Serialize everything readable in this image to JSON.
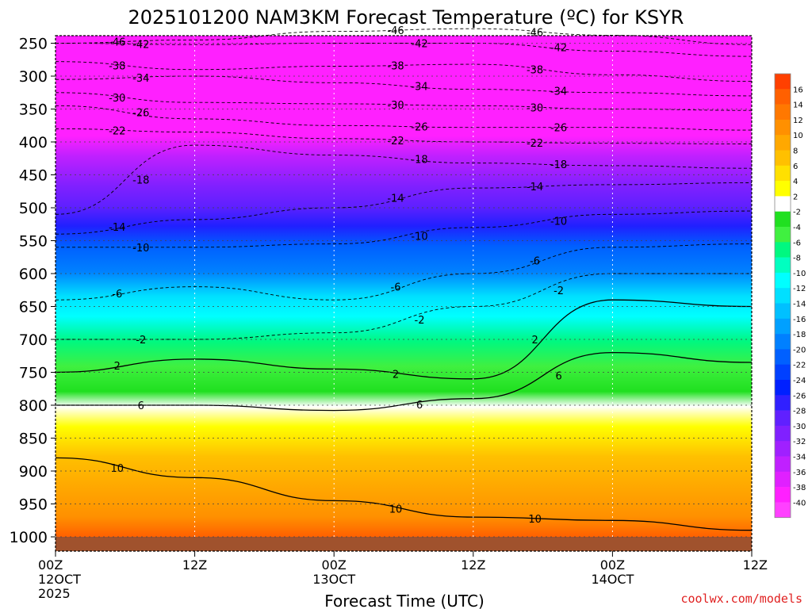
{
  "title": "2025101200 NAM3KM Forecast Temperature (ºC) for KSYR",
  "xlabel": "Forecast Time (UTC)",
  "watermark": "coolwx.com/models",
  "chart_data": {
    "type": "heatmap",
    "title": "2025101200 NAM3KM Forecast Temperature (ºC) for KSYR",
    "xlabel": "Forecast Time (UTC)",
    "ylabel": "",
    "xlim": [
      0,
      60
    ],
    "ylim": [
      1000,
      200
    ],
    "x_ticks": [
      {
        "hour": 0,
        "lines": [
          "00Z",
          "12OCT",
          "2025"
        ]
      },
      {
        "hour": 12,
        "lines": [
          "12Z"
        ]
      },
      {
        "hour": 24,
        "lines": [
          "00Z",
          "13OCT"
        ]
      },
      {
        "hour": 36,
        "lines": [
          "12Z"
        ]
      },
      {
        "hour": 48,
        "lines": [
          "00Z",
          "14OCT"
        ]
      },
      {
        "hour": 60,
        "lines": [
          "12Z"
        ]
      }
    ],
    "y_ticks": [
      250,
      300,
      350,
      400,
      450,
      500,
      550,
      600,
      650,
      700,
      750,
      800,
      850,
      900,
      950,
      1000
    ],
    "colorbar_labels": [
      "16",
      "14",
      "12",
      "10",
      "8",
      "6",
      "4",
      "2",
      "-2",
      "-4",
      "-6",
      "-8",
      "-10",
      "-12",
      "-14",
      "-16",
      "-18",
      "-20",
      "-22",
      "-24",
      "-26",
      "-28",
      "-30",
      "-32",
      "-34",
      "-36",
      "-38",
      "-40"
    ],
    "colorbar_colors": [
      "#ff4000",
      "#ff6000",
      "#ff7800",
      "#ff9000",
      "#ffa800",
      "#ffc000",
      "#ffe000",
      "#ffff00",
      "#ffffff",
      "#20e020",
      "#40f040",
      "#00f880",
      "#00ffc0",
      "#00ffff",
      "#00e0ff",
      "#00c0ff",
      "#00a0ff",
      "#0080ff",
      "#0060ff",
      "#0040ff",
      "#0020ff",
      "#3020ff",
      "#6020ff",
      "#8020ff",
      "#a020ff",
      "#c020ff",
      "#e020ff",
      "#ff20ff",
      "#ff40ff"
    ],
    "series": [
      {
        "name": "-46",
        "values": [
          [
            0,
            250
          ],
          [
            12,
            245
          ],
          [
            24,
            232
          ],
          [
            36,
            228
          ],
          [
            48,
            238
          ],
          [
            60,
            252
          ]
        ]
      },
      {
        "name": "-42",
        "values": [
          [
            0,
            250
          ],
          [
            12,
            252
          ],
          [
            24,
            250
          ],
          [
            36,
            250
          ],
          [
            48,
            262
          ],
          [
            60,
            270
          ]
        ]
      },
      {
        "name": "-38",
        "values": [
          [
            0,
            278
          ],
          [
            12,
            290
          ],
          [
            24,
            285
          ],
          [
            36,
            282
          ],
          [
            48,
            298
          ],
          [
            60,
            308
          ]
        ]
      },
      {
        "name": "-34",
        "values": [
          [
            0,
            305
          ],
          [
            12,
            300
          ],
          [
            24,
            310
          ],
          [
            36,
            320
          ],
          [
            48,
            325
          ],
          [
            60,
            330
          ]
        ]
      },
      {
        "name": "-30",
        "values": [
          [
            0,
            325
          ],
          [
            12,
            340
          ],
          [
            24,
            342
          ],
          [
            36,
            345
          ],
          [
            48,
            350
          ],
          [
            60,
            352
          ]
        ]
      },
      {
        "name": "-26",
        "values": [
          [
            0,
            345
          ],
          [
            12,
            365
          ],
          [
            24,
            375
          ],
          [
            36,
            378
          ],
          [
            48,
            378
          ],
          [
            60,
            382
          ]
        ]
      },
      {
        "name": "-22",
        "values": [
          [
            0,
            380
          ],
          [
            12,
            385
          ],
          [
            24,
            395
          ],
          [
            36,
            400
          ],
          [
            48,
            402
          ],
          [
            60,
            403
          ]
        ]
      },
      {
        "name": "-18",
        "values": [
          [
            0,
            510
          ],
          [
            12,
            405
          ],
          [
            24,
            420
          ],
          [
            36,
            432
          ],
          [
            48,
            436
          ],
          [
            60,
            440
          ]
        ]
      },
      {
        "name": "-14",
        "values": [
          [
            0,
            540
          ],
          [
            12,
            518
          ],
          [
            24,
            500
          ],
          [
            36,
            470
          ],
          [
            48,
            465
          ],
          [
            60,
            462
          ]
        ]
      },
      {
        "name": "-10",
        "values": [
          [
            0,
            560
          ],
          [
            12,
            560
          ],
          [
            24,
            555
          ],
          [
            36,
            530
          ],
          [
            48,
            510
          ],
          [
            60,
            505
          ]
        ]
      },
      {
        "name": "-6",
        "values": [
          [
            0,
            640
          ],
          [
            12,
            620
          ],
          [
            24,
            640
          ],
          [
            36,
            600
          ],
          [
            48,
            560
          ],
          [
            60,
            555
          ]
        ]
      },
      {
        "name": "-2",
        "values": [
          [
            0,
            700
          ],
          [
            12,
            700
          ],
          [
            24,
            690
          ],
          [
            36,
            650
          ],
          [
            48,
            600
          ],
          [
            60,
            600
          ]
        ]
      },
      {
        "name": "2",
        "values": [
          [
            0,
            750
          ],
          [
            12,
            730
          ],
          [
            24,
            745
          ],
          [
            36,
            760
          ],
          [
            48,
            640
          ],
          [
            60,
            650
          ]
        ]
      },
      {
        "name": "6",
        "values": [
          [
            0,
            800
          ],
          [
            12,
            800
          ],
          [
            24,
            808
          ],
          [
            36,
            790
          ],
          [
            48,
            720
          ],
          [
            60,
            735
          ]
        ]
      },
      {
        "name": "10",
        "values": [
          [
            0,
            880
          ],
          [
            12,
            910
          ],
          [
            24,
            945
          ],
          [
            36,
            970
          ],
          [
            48,
            975
          ],
          [
            60,
            990
          ]
        ]
      }
    ]
  }
}
